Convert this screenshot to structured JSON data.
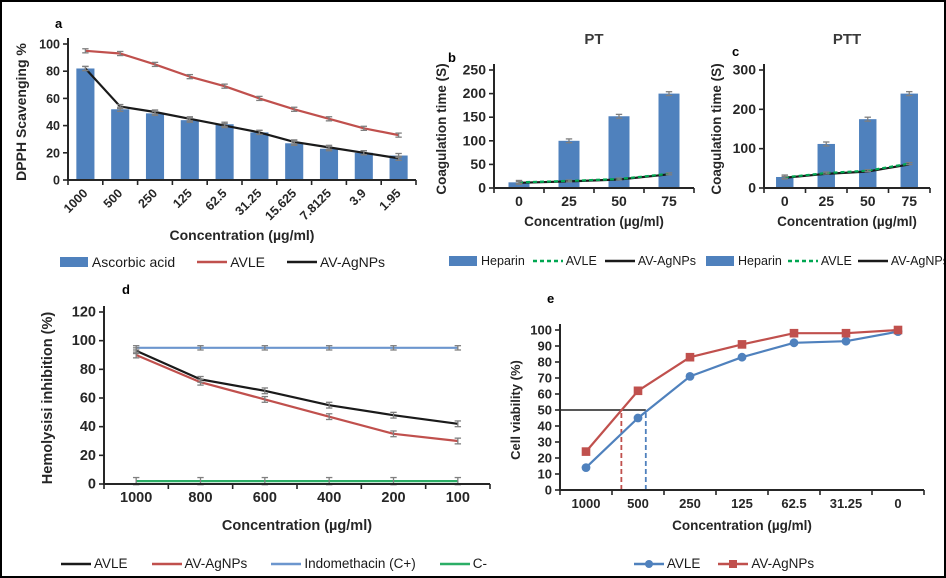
{
  "figure": {
    "background": "#ffffff",
    "border_color": "#000000",
    "error_bar_color": "#7f7f7f",
    "axis_color": "#262626"
  },
  "chart_data": [
    {
      "id": "a",
      "panel_label": "a",
      "type": "bar",
      "title": "",
      "xlabel": "Concentration (µg/ml)",
      "ylabel": "DPPH Scavenging %",
      "ylim": [
        0,
        100
      ],
      "ytick_step": 20,
      "grid": false,
      "legend_position": "bottom",
      "x_tick_rotation": -45,
      "categories": [
        "1000",
        "500",
        "250",
        "125",
        "62.5",
        "31.25",
        "15.625",
        "7.8125",
        "3.9",
        "1.95"
      ],
      "series": [
        {
          "name": "Ascorbic acid",
          "kind": "bar",
          "color": "#4F81BD",
          "error": 1.5,
          "values": [
            82,
            52,
            49,
            44,
            41,
            35,
            27,
            23,
            20,
            18
          ]
        },
        {
          "name": "AVLE",
          "kind": "line",
          "color": "#C0504D",
          "error": 1.5,
          "values": [
            95,
            93,
            85,
            76,
            69,
            60,
            52,
            45,
            38,
            33
          ]
        },
        {
          "name": "AV-AgNPs",
          "kind": "line",
          "color": "#1A1A1A",
          "error": 1.5,
          "values": [
            82,
            54,
            50,
            45,
            40,
            35,
            28,
            24,
            20,
            16
          ]
        }
      ]
    },
    {
      "id": "b",
      "panel_label": "b",
      "type": "bar",
      "title": "PT",
      "xlabel": "Concentration (µg/ml)",
      "ylabel": "Coagulation time (S)",
      "ylim": [
        0,
        250
      ],
      "ytick_step": 50,
      "grid": false,
      "legend_position": "bottom",
      "categories": [
        "0",
        "25",
        "50",
        "75"
      ],
      "series": [
        {
          "name": "Heparin",
          "kind": "bar",
          "color": "#4F81BD",
          "error": 4,
          "values": [
            12,
            100,
            152,
            200
          ]
        },
        {
          "name": "AVLE",
          "kind": "line",
          "color": "#00A651",
          "dash": "4 3",
          "error": 2,
          "values": [
            12,
            15,
            19,
            30
          ]
        },
        {
          "name": "AV-AgNPs",
          "kind": "line",
          "color": "#1A1A1A",
          "error": 0,
          "values": [
            11,
            14,
            18,
            29
          ]
        }
      ]
    },
    {
      "id": "c",
      "panel_label": "c",
      "type": "bar",
      "title": "PTT",
      "xlabel": "Concentration (µg/ml)",
      "ylabel": "Coagulation time (S)",
      "ylim": [
        0,
        300
      ],
      "ytick_step": 100,
      "grid": false,
      "legend_position": "bottom",
      "categories": [
        "0",
        "25",
        "50",
        "75"
      ],
      "series": [
        {
          "name": "Heparin",
          "kind": "bar",
          "color": "#4F81BD",
          "error": 5,
          "values": [
            28,
            112,
            175,
            240
          ]
        },
        {
          "name": "AVLE",
          "kind": "line",
          "color": "#00A651",
          "dash": "4 3",
          "error": 2.5,
          "values": [
            27,
            38,
            44,
            62
          ]
        },
        {
          "name": "AV-AgNPs",
          "kind": "line",
          "color": "#1A1A1A",
          "error": 0,
          "values": [
            26,
            36,
            42,
            60
          ]
        }
      ]
    },
    {
      "id": "d",
      "panel_label": "d",
      "type": "line",
      "title": "",
      "xlabel": "Concentration (µg/ml)",
      "ylabel": "Hemolysisi inhibition (%)",
      "ylim": [
        0,
        120
      ],
      "ytick_step": 20,
      "grid": false,
      "legend_position": "bottom",
      "categories": [
        "1000",
        "800",
        "600",
        "400",
        "200",
        "100"
      ],
      "series": [
        {
          "name": "AVLE",
          "kind": "line",
          "color": "#1A1A1A",
          "error": 2,
          "values": [
            93,
            73,
            65,
            55,
            48,
            42
          ]
        },
        {
          "name": "AV-AgNPs",
          "kind": "line",
          "color": "#C0504D",
          "error": 2,
          "values": [
            90,
            71,
            59,
            47,
            35,
            30
          ]
        },
        {
          "name": "Indomethacin (C+)",
          "kind": "line",
          "color": "#6C96CE",
          "error": 1.5,
          "values": [
            95,
            95,
            95,
            95,
            95,
            95
          ]
        },
        {
          "name": "C-",
          "kind": "line",
          "color": "#2BAE66",
          "error": 2.5,
          "values": [
            2,
            2,
            2,
            2,
            2,
            2
          ]
        }
      ]
    },
    {
      "id": "e",
      "panel_label": "e",
      "type": "line",
      "title": "",
      "xlabel": "Concentration (µg/ml)",
      "ylabel": "Cell viability (%)",
      "ylim": [
        0,
        100
      ],
      "ytick_step": 10,
      "grid": false,
      "legend_position": "bottom",
      "categories": [
        "1000",
        "500",
        "250",
        "125",
        "62.5",
        "31.25",
        "0"
      ],
      "series": [
        {
          "name": "AVLE",
          "kind": "line",
          "marker": "circle",
          "color": "#4F81BD",
          "error": 0,
          "values": [
            14,
            45,
            71,
            83,
            92,
            93,
            99
          ]
        },
        {
          "name": "AV-AgNPs",
          "kind": "line",
          "marker": "square",
          "color": "#C0504D",
          "error": 0,
          "values": [
            24,
            62,
            83,
            91,
            98,
            98,
            100
          ]
        }
      ],
      "annotations": {
        "hline": {
          "y": 50,
          "end_cat_pos": 1.15,
          "color": "#3F3F3F"
        },
        "vlines": [
          {
            "cat_pos": 0.68,
            "to_y": 50,
            "color": "#C0504D"
          },
          {
            "cat_pos": 1.15,
            "to_y": 50,
            "color": "#4F81BD"
          }
        ]
      }
    }
  ]
}
